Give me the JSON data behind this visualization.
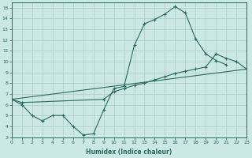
{
  "xlabel": "Humidex (Indice chaleur)",
  "bg_color": "#cce8e4",
  "line_color": "#2a6b60",
  "grid_color": "#aacccc",
  "xlim": [
    0,
    23
  ],
  "ylim": [
    3,
    15.5
  ],
  "xticks": [
    0,
    1,
    2,
    3,
    4,
    5,
    6,
    7,
    8,
    9,
    10,
    11,
    12,
    13,
    14,
    15,
    16,
    17,
    18,
    19,
    20,
    21,
    22,
    23
  ],
  "yticks": [
    3,
    4,
    5,
    6,
    7,
    8,
    9,
    10,
    11,
    12,
    13,
    14,
    15
  ],
  "curve1_x": [
    0,
    1,
    2,
    3,
    4,
    5,
    6,
    7,
    8,
    9,
    10,
    11,
    12,
    13,
    14,
    15,
    16,
    17,
    18,
    19,
    20,
    21
  ],
  "curve1_y": [
    6.5,
    6.0,
    5.0,
    4.5,
    5.0,
    5.0,
    4.0,
    3.2,
    3.3,
    5.5,
    7.5,
    7.7,
    11.5,
    13.5,
    13.9,
    14.4,
    15.1,
    14.5,
    12.1,
    10.7,
    10.1,
    9.7
  ],
  "curve2_x": [
    0,
    1,
    9,
    10,
    11,
    12,
    13,
    14,
    15,
    16,
    17,
    18,
    19,
    20,
    21,
    22,
    23
  ],
  "curve2_y": [
    6.5,
    6.2,
    6.5,
    7.2,
    7.5,
    7.8,
    8.0,
    8.3,
    8.6,
    8.9,
    9.1,
    9.3,
    9.5,
    10.7,
    10.3,
    10.0,
    9.3
  ],
  "curve3_x": [
    0,
    23
  ],
  "curve3_y": [
    6.5,
    9.3
  ]
}
